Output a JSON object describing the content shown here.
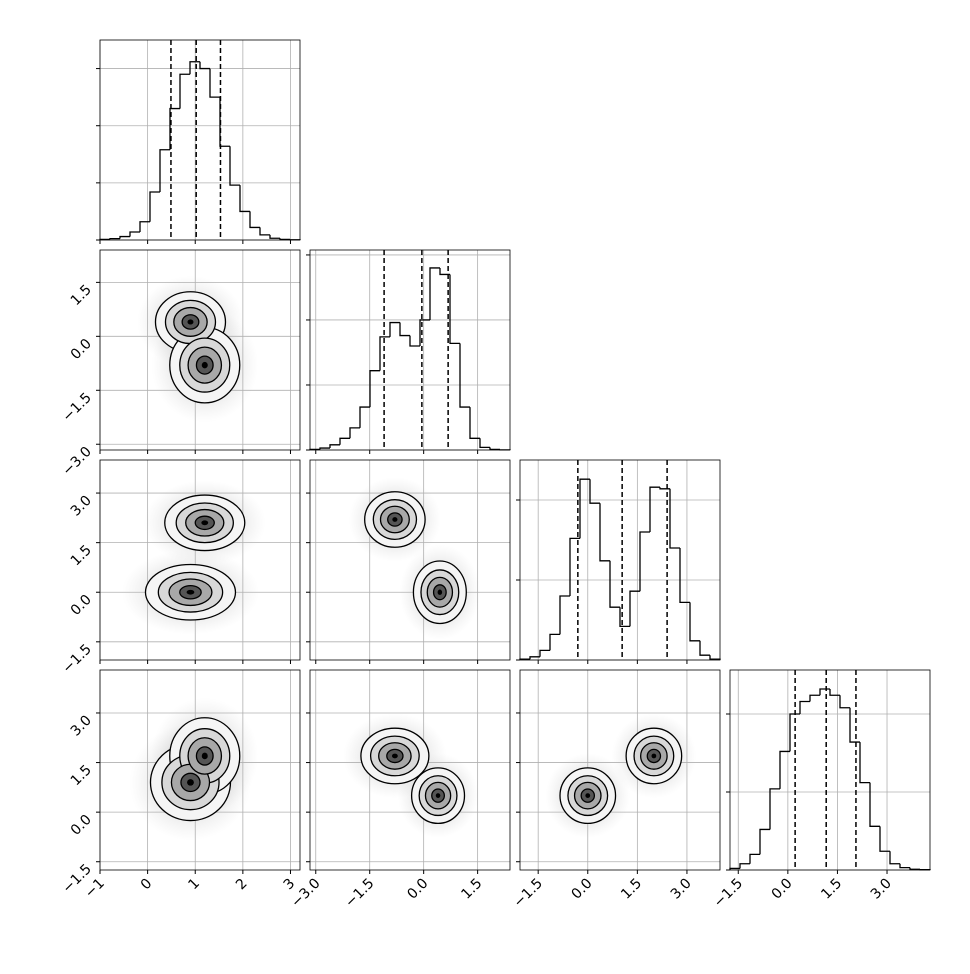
{
  "chart_data": {
    "type": "corner",
    "grid": true,
    "color": "#000000",
    "variables": [
      {
        "lim": [
          -1,
          3.2
        ],
        "ticks": [
          {
            "value": -1,
            "label": "−1"
          },
          0,
          1,
          2,
          3
        ],
        "bins": [
          -1,
          -0.79,
          -0.58,
          -0.37,
          -0.16,
          0.05,
          0.26,
          0.47,
          0.68,
          0.89,
          1.1,
          1.31,
          1.52,
          1.73,
          1.94,
          2.15,
          2.36,
          2.57,
          2.78,
          2.99,
          3.2
        ],
        "counts": [
          5,
          12,
          30,
          70,
          160,
          420,
          790,
          1150,
          1450,
          1560,
          1500,
          1250,
          820,
          480,
          250,
          110,
          45,
          15,
          5,
          2
        ],
        "quantiles": [
          0.49,
          1.02,
          1.53
        ],
        "hist_ylim": [
          0,
          1750
        ],
        "hist_yticks": [
          0,
          500,
          1000,
          1500
        ]
      },
      {
        "lim": [
          -3.16,
          2.4
        ],
        "ticks": [
          {
            "value": -3.0,
            "label": "−3.0"
          },
          {
            "value": -1.5,
            "label": "−1.5"
          },
          {
            "value": 0,
            "label": "0.0"
          },
          1.5
        ],
        "bins": [
          -3.16,
          -2.882,
          -2.604,
          -2.326,
          -2.048,
          -1.77,
          -1.492,
          -1.214,
          -0.936,
          -0.658,
          -0.38,
          -0.102,
          0.176,
          0.454,
          0.732,
          1.01,
          1.288,
          1.566,
          1.844,
          2.122,
          2.4
        ],
        "counts": [
          5,
          15,
          40,
          90,
          170,
          330,
          610,
          870,
          980,
          880,
          800,
          1000,
          1400,
          1350,
          820,
          330,
          90,
          20,
          5,
          1
        ],
        "quantiles": [
          -1.1,
          -0.05,
          0.68
        ],
        "hist_ylim": [
          0,
          1538
        ],
        "hist_yticks": [
          0,
          500,
          1000,
          1500
        ]
      },
      {
        "lim": [
          -2.05,
          4.0
        ],
        "ticks": [
          {
            "value": -1.5,
            "label": "−1.5"
          },
          {
            "value": 0,
            "label": "0.0"
          },
          1.5,
          {
            "value": 3,
            "label": "3.0"
          }
        ],
        "bins": [
          -2.05,
          -1.7475,
          -1.445,
          -1.1425,
          -0.84,
          -0.5375,
          -0.235,
          0.0675,
          0.37,
          0.6725,
          0.975,
          1.2775,
          1.58,
          1.8825,
          2.185,
          2.4875,
          2.79,
          3.0925,
          3.395,
          3.6975,
          4.0
        ],
        "counts": [
          5,
          20,
          60,
          160,
          400,
          760,
          1130,
          980,
          620,
          330,
          210,
          430,
          800,
          1080,
          1070,
          700,
          360,
          120,
          30,
          5
        ],
        "quantiles": [
          -0.3,
          1.04,
          2.4
        ],
        "hist_ylim": [
          0,
          1250
        ],
        "hist_yticks": [
          0,
          500,
          1000
        ]
      },
      {
        "lim": [
          -1.75,
          4.3
        ],
        "ticks": [
          {
            "value": -1.5,
            "label": "−1.5"
          },
          {
            "value": 0,
            "label": "0.0"
          },
          1.5,
          {
            "value": 3,
            "label": "3.0"
          }
        ],
        "bins": [
          -1.75,
          -1.4475,
          -1.145,
          -0.8425,
          -0.54,
          -0.2375,
          0.065,
          0.3675,
          0.67,
          0.9725,
          1.275,
          1.5775,
          1.88,
          2.1825,
          2.485,
          2.7875,
          3.09,
          3.3925,
          3.695,
          3.9975,
          4.3
        ],
        "counts": [
          10,
          40,
          100,
          260,
          520,
          760,
          1000,
          1080,
          1120,
          1160,
          1120,
          1040,
          820,
          560,
          280,
          120,
          40,
          15,
          5,
          2
        ],
        "quantiles": [
          0.22,
          1.16,
          2.06
        ],
        "hist_ylim": [
          0,
          1282
        ],
        "hist_yticks": [
          0,
          500,
          1000
        ]
      }
    ],
    "pairs": [
      {
        "x_var": 0,
        "y_var": 1,
        "clusters": [
          {
            "x": 0.9,
            "y": 0.4,
            "sx": 0.35,
            "sy": 0.4
          },
          {
            "x": 1.2,
            "y": -0.8,
            "sx": 0.35,
            "sy": 0.5
          }
        ]
      },
      {
        "x_var": 0,
        "y_var": 2,
        "clusters": [
          {
            "x": 1.2,
            "y": 2.1,
            "sx": 0.4,
            "sy": 0.4
          },
          {
            "x": 0.9,
            "y": 0.0,
            "sx": 0.45,
            "sy": 0.4
          }
        ]
      },
      {
        "x_var": 1,
        "y_var": 2,
        "clusters": [
          {
            "x": -0.8,
            "y": 2.2,
            "sx": 0.4,
            "sy": 0.4
          },
          {
            "x": 0.45,
            "y": 0.0,
            "sx": 0.35,
            "sy": 0.45
          }
        ]
      },
      {
        "x_var": 0,
        "y_var": 3,
        "clusters": [
          {
            "x": 0.9,
            "y": 0.9,
            "sx": 0.4,
            "sy": 0.55
          },
          {
            "x": 1.2,
            "y": 1.7,
            "sx": 0.35,
            "sy": 0.55
          }
        ]
      },
      {
        "x_var": 1,
        "y_var": 3,
        "clusters": [
          {
            "x": -0.8,
            "y": 1.7,
            "sx": 0.45,
            "sy": 0.4
          },
          {
            "x": 0.4,
            "y": 0.5,
            "sx": 0.35,
            "sy": 0.4
          }
        ]
      },
      {
        "x_var": 2,
        "y_var": 3,
        "clusters": [
          {
            "x": 0.0,
            "y": 0.5,
            "sx": 0.4,
            "sy": 0.4
          },
          {
            "x": 2.0,
            "y": 1.7,
            "sx": 0.4,
            "sy": 0.4
          }
        ]
      }
    ]
  }
}
